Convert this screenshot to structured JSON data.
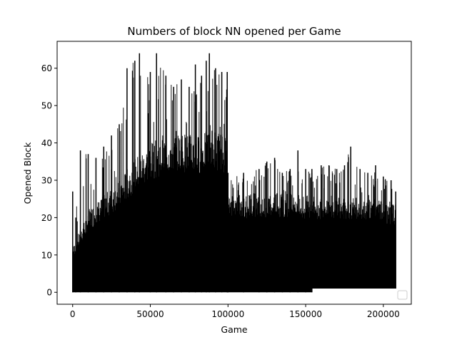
{
  "chart_data": {
    "type": "line",
    "title": "Numbers of block NN opened per Game",
    "xlabel": "Game",
    "ylabel": "Opened Block",
    "xlim": [
      -10000,
      218000
    ],
    "ylim": [
      -3.2,
      67.2
    ],
    "x_ticks": [
      0,
      50000,
      100000,
      150000,
      200000
    ],
    "y_ticks": [
      0,
      10,
      20,
      30,
      40,
      50,
      60
    ],
    "grid": false,
    "legend": {
      "placement": "lower-right",
      "entries": []
    },
    "colors": {
      "series": "#000000",
      "axes": "#000000",
      "background": "#ffffff"
    },
    "series": [
      {
        "segments": [
          {
            "x_range": [
              0,
              100000
            ],
            "min": 0,
            "max_envelope": [
              [
                0,
                27
              ],
              [
                2000,
                20
              ],
              [
                5000,
                38
              ],
              [
                10000,
                37
              ],
              [
                15000,
                36
              ],
              [
                20000,
                39
              ],
              [
                25000,
                42
              ],
              [
                30000,
                45
              ],
              [
                35000,
                60
              ],
              [
                40000,
                62
              ],
              [
                43000,
                64
              ],
              [
                50000,
                59
              ],
              [
                54000,
                64
              ],
              [
                60000,
                58
              ],
              [
                65000,
                55
              ],
              [
                70000,
                57
              ],
              [
                75000,
                55
              ],
              [
                79000,
                61
              ],
              [
                83000,
                58
              ],
              [
                86000,
                62
              ],
              [
                88000,
                64
              ],
              [
                92000,
                60
              ],
              [
                96000,
                59
              ],
              [
                99500,
                59
              ]
            ]
          },
          {
            "x_range": [
              100000,
              154000
            ],
            "min": 0,
            "max_envelope": [
              [
                100000,
                32
              ],
              [
                110000,
                32
              ],
              [
                120000,
                33
              ],
              [
                125000,
                35
              ],
              [
                130000,
                36
              ],
              [
                135000,
                32
              ],
              [
                140000,
                33
              ],
              [
                145000,
                38
              ],
              [
                150000,
                33
              ],
              [
                154000,
                32
              ]
            ]
          },
          {
            "x_range": [
              154000,
              208000
            ],
            "min": 1,
            "max_envelope": [
              [
                154000,
                33
              ],
              [
                160000,
                34
              ],
              [
                165000,
                34
              ],
              [
                170000,
                33
              ],
              [
                175000,
                34
              ],
              [
                179000,
                39
              ],
              [
                185000,
                33
              ],
              [
                190000,
                32
              ],
              [
                195000,
                34
              ],
              [
                200000,
                31
              ],
              [
                205000,
                30
              ],
              [
                208000,
                27
              ]
            ]
          }
        ],
        "typical_max": [
          [
            0,
            12
          ],
          [
            10000,
            22
          ],
          [
            20000,
            26
          ],
          [
            30000,
            30
          ],
          [
            40000,
            36
          ],
          [
            50000,
            40
          ],
          [
            60000,
            42
          ],
          [
            70000,
            43
          ],
          [
            80000,
            42
          ],
          [
            90000,
            44
          ],
          [
            99500,
            42
          ],
          [
            100000,
            26
          ],
          [
            130000,
            27
          ],
          [
            154000,
            26
          ],
          [
            180000,
            26
          ],
          [
            208000,
            24
          ]
        ]
      }
    ]
  }
}
